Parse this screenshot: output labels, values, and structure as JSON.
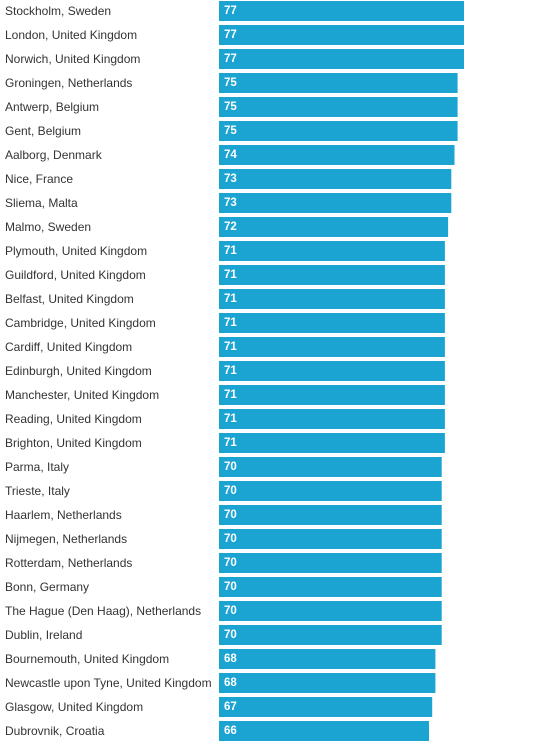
{
  "chart_data": {
    "type": "bar",
    "orientation": "horizontal",
    "categories": [
      "Stockholm, Sweden",
      "London, United Kingdom",
      "Norwich, United Kingdom",
      "Groningen, Netherlands",
      "Antwerp, Belgium",
      "Gent, Belgium",
      "Aalborg, Denmark",
      "Nice, France",
      "Sliema, Malta",
      "Malmo, Sweden",
      "Plymouth, United Kingdom",
      "Guildford, United Kingdom",
      "Belfast, United Kingdom",
      "Cambridge, United Kingdom",
      "Cardiff, United Kingdom",
      "Edinburgh, United Kingdom",
      "Manchester, United Kingdom",
      "Reading, United Kingdom",
      "Brighton, United Kingdom",
      "Parma, Italy",
      "Trieste, Italy",
      "Haarlem, Netherlands",
      "Nijmegen, Netherlands",
      "Rotterdam, Netherlands",
      "Bonn, Germany",
      "The Hague (Den Haag), Netherlands",
      "Dublin, Ireland",
      "Bournemouth, United Kingdom",
      "Newcastle upon Tyne, United Kingdom",
      "Glasgow, United Kingdom",
      "Dubrovnik, Croatia"
    ],
    "values": [
      77,
      77,
      77,
      75,
      75,
      75,
      74,
      73,
      73,
      72,
      71,
      71,
      71,
      71,
      71,
      71,
      71,
      71,
      71,
      70,
      70,
      70,
      70,
      70,
      70,
      70,
      70,
      68,
      68,
      67,
      66
    ],
    "value_labels": [
      "77",
      "77",
      "77",
      "75",
      "75",
      "75",
      "74",
      "73",
      "73",
      "72",
      "71",
      "71",
      "71",
      "71",
      "71",
      "71",
      "71",
      "71",
      "71",
      "70",
      "70",
      "70",
      "70",
      "70",
      "70",
      "70",
      "70",
      "68",
      "68",
      "67",
      "66"
    ],
    "bar_color": "#1ba3d1",
    "value_label_color": "#ffffff",
    "category_label_color": "#333333",
    "grid": false,
    "legend": "none"
  }
}
